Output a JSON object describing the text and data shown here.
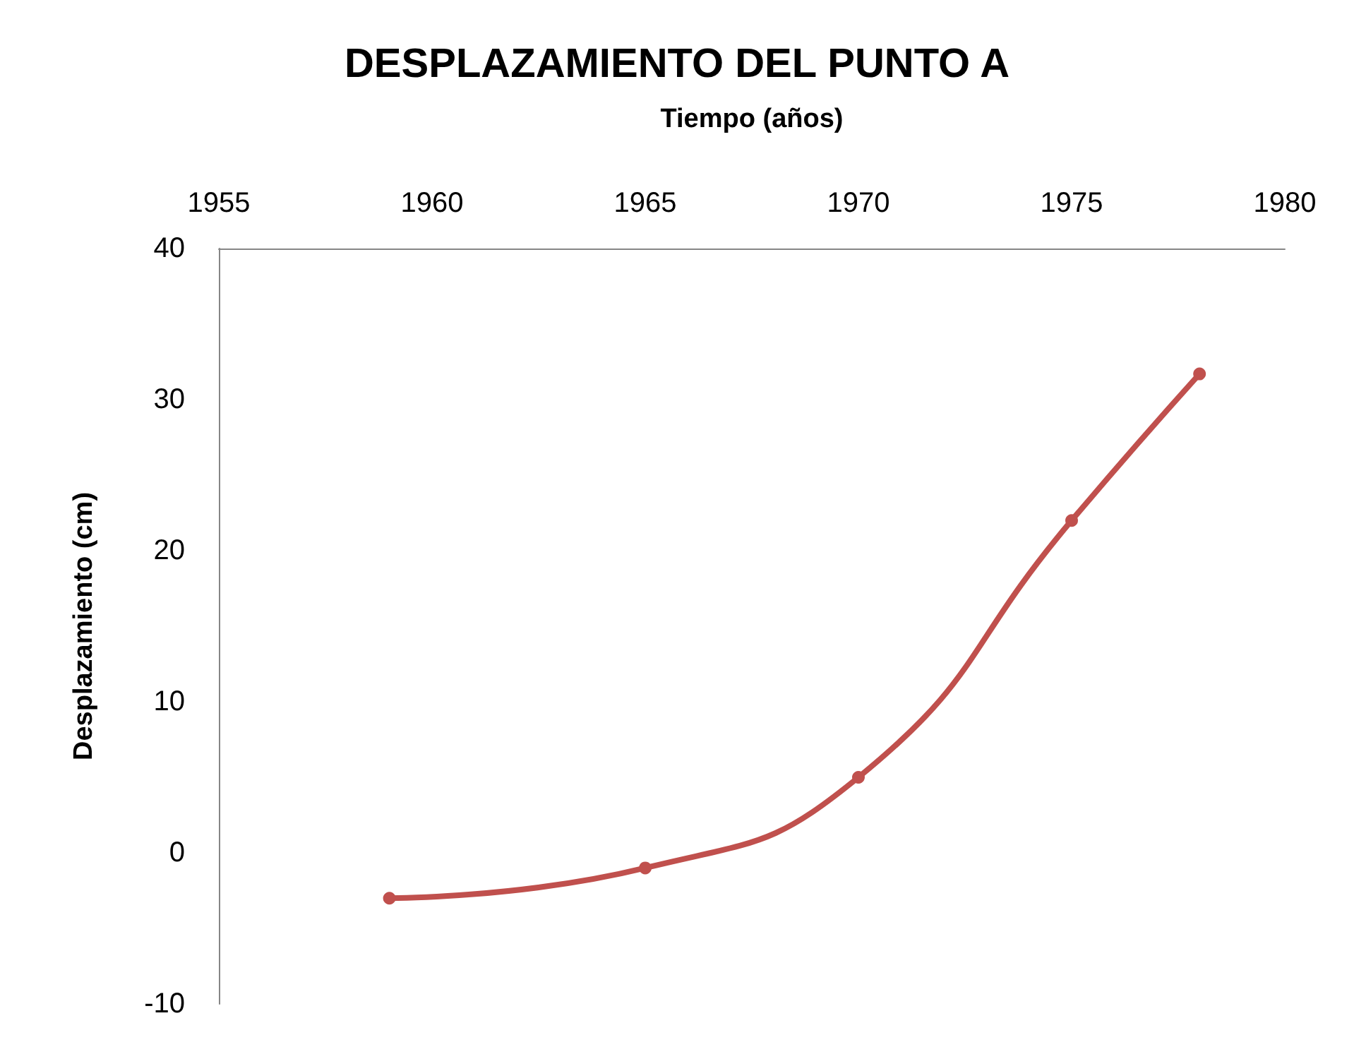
{
  "chart_data": {
    "type": "line",
    "title": "DESPLAZAMIENTO DEL PUNTO A",
    "xlabel": "Tiempo (años)",
    "ylabel": "Desplazamiento (cm)",
    "x": [
      1959,
      1965,
      1970,
      1975,
      1978
    ],
    "series": [
      {
        "color": "#c0504d",
        "values": [
          -3,
          -1,
          5,
          22,
          31.7
        ]
      }
    ],
    "xlim": [
      1955,
      1980
    ],
    "xticks": [
      1955,
      1960,
      1965,
      1970,
      1975,
      1980
    ],
    "ylim": [
      -10,
      40
    ],
    "yticks": [
      -10,
      0,
      10,
      20,
      30,
      40
    ],
    "grid": false,
    "marker": "circle",
    "line_style": "solid"
  }
}
